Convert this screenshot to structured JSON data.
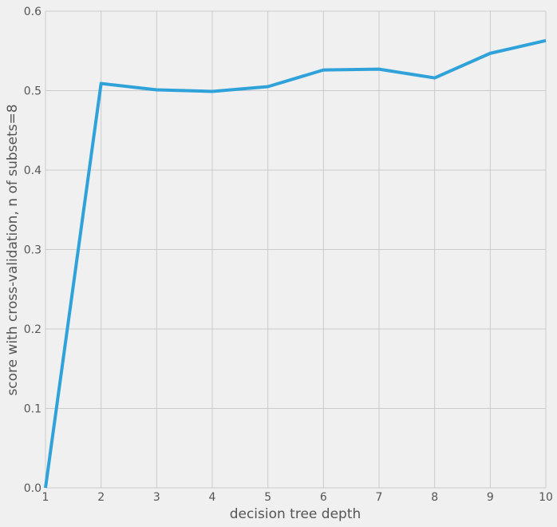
{
  "chart_data": {
    "type": "line",
    "title": "",
    "xlabel": "decision tree depth",
    "ylabel": "score with cross-validation, n of subsets=8",
    "xlim": [
      1,
      10
    ],
    "ylim": [
      0.0,
      0.6
    ],
    "x_ticks": [
      1,
      2,
      3,
      4,
      5,
      6,
      7,
      8,
      9,
      10
    ],
    "x_tick_labels": [
      "1",
      "2",
      "3",
      "4",
      "5",
      "6",
      "7",
      "8",
      "9",
      "10"
    ],
    "y_ticks": [
      0.0,
      0.1,
      0.2,
      0.3,
      0.4,
      0.5,
      0.6
    ],
    "y_tick_labels": [
      "0.0",
      "0.1",
      "0.2",
      "0.3",
      "0.4",
      "0.5",
      "0.6"
    ],
    "grid": true,
    "series": [
      {
        "x": [
          1,
          2,
          3,
          4,
          5,
          6,
          7,
          8,
          9,
          10
        ],
        "values": [
          0.0,
          0.509,
          0.501,
          0.499,
          0.505,
          0.526,
          0.527,
          0.516,
          0.547,
          0.563
        ],
        "color": "#30a2da"
      }
    ]
  },
  "colors": {
    "background": "#f0f0f0",
    "grid": "#cbcbcb",
    "line": "#30a2da",
    "text": "#555555"
  }
}
